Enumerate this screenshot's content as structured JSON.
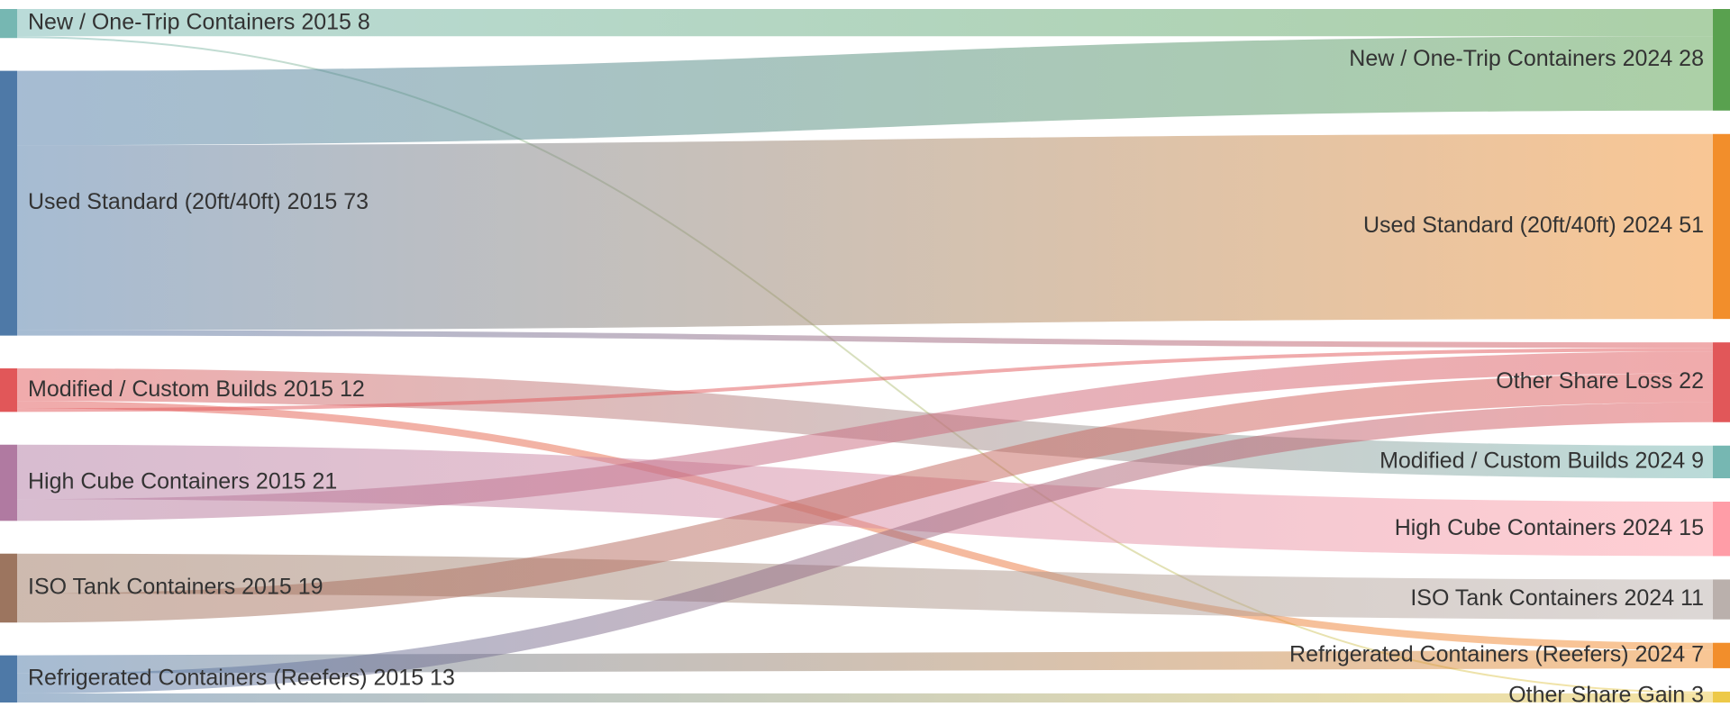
{
  "chart_data": {
    "type": "sankey",
    "title": "",
    "nodes": [
      {
        "id": "new15",
        "name": "New / One-Trip Containers 2015",
        "value": 8,
        "side": "left",
        "color": "#76b7b2"
      },
      {
        "id": "used15",
        "name": "Used Standard (20ft/40ft) 2015",
        "value": 73,
        "side": "left",
        "color": "#4e79a7"
      },
      {
        "id": "mod15",
        "name": "Modified / Custom Builds 2015",
        "value": 12,
        "side": "left",
        "color": "#e15759"
      },
      {
        "id": "hc15",
        "name": "High Cube Containers 2015",
        "value": 21,
        "side": "left",
        "color": "#b07aa1"
      },
      {
        "id": "iso15",
        "name": "ISO Tank Containers 2015",
        "value": 19,
        "side": "left",
        "color": "#9c755f"
      },
      {
        "id": "ref15",
        "name": "Refrigerated Containers (Reefers) 2015",
        "value": 13,
        "side": "left",
        "color": "#4e79a7"
      },
      {
        "id": "new24",
        "name": "New / One-Trip Containers 2024",
        "value": 28,
        "side": "right",
        "color": "#59a14f"
      },
      {
        "id": "used24",
        "name": "Used Standard (20ft/40ft) 2024",
        "value": 51,
        "side": "right",
        "color": "#f28e2b"
      },
      {
        "id": "loss",
        "name": "Other Share Loss",
        "value": 22,
        "side": "right",
        "color": "#e15759"
      },
      {
        "id": "mod24",
        "name": "Modified / Custom Builds 2024",
        "value": 9,
        "side": "right",
        "color": "#76b7b2"
      },
      {
        "id": "hc24",
        "name": "High Cube Containers 2024",
        "value": 15,
        "side": "right",
        "color": "#ff9da7"
      },
      {
        "id": "iso24",
        "name": "ISO Tank Containers 2024",
        "value": 11,
        "side": "right",
        "color": "#bab0ac"
      },
      {
        "id": "ref24",
        "name": "Refrigerated Containers (Reefers) 2024",
        "value": 7,
        "side": "right",
        "color": "#f28e2b"
      },
      {
        "id": "gain",
        "name": "Other Share Gain",
        "value": 3,
        "side": "right",
        "color": "#edc948"
      }
    ],
    "links": [
      {
        "source": "new15",
        "target": "new24",
        "value": 7.5
      },
      {
        "source": "new15",
        "target": "gain",
        "value": 0.5
      },
      {
        "source": "used15",
        "target": "new24",
        "value": 20.5
      },
      {
        "source": "used15",
        "target": "used24",
        "value": 51
      },
      {
        "source": "used15",
        "target": "loss",
        "value": 1.5
      },
      {
        "source": "mod15",
        "target": "mod24",
        "value": 9
      },
      {
        "source": "mod15",
        "target": "ref24",
        "value": 2
      },
      {
        "source": "mod15",
        "target": "loss",
        "value": 1
      },
      {
        "source": "hc15",
        "target": "hc24",
        "value": 15
      },
      {
        "source": "hc15",
        "target": "loss",
        "value": 6
      },
      {
        "source": "iso15",
        "target": "iso24",
        "value": 11
      },
      {
        "source": "iso15",
        "target": "loss",
        "value": 8
      },
      {
        "source": "ref15",
        "target": "ref24",
        "value": 5
      },
      {
        "source": "ref15",
        "target": "loss",
        "value": 5.5
      },
      {
        "source": "ref15",
        "target": "gain",
        "value": 2.5
      }
    ]
  }
}
